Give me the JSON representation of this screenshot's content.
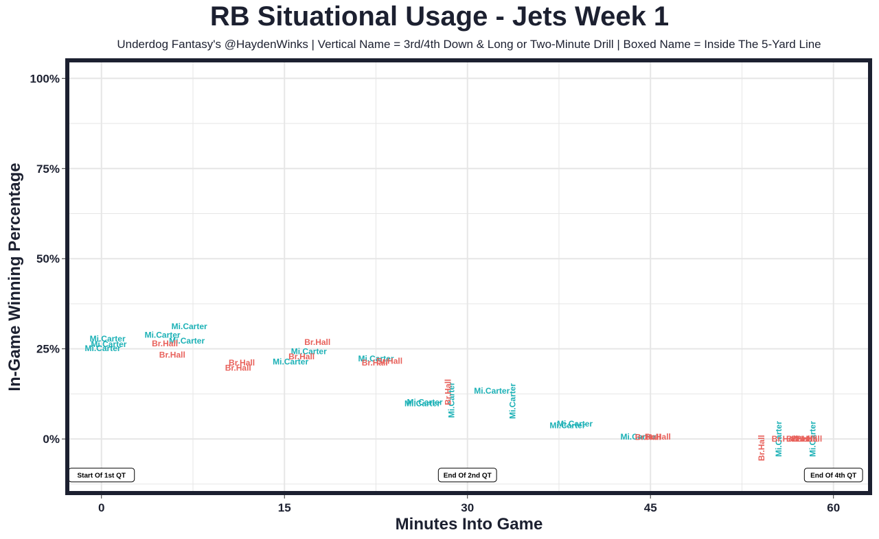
{
  "colors": {
    "Br.Hall": "#e8615b",
    "Mi.Carter": "#1cb1b6",
    "frame": "#1c2030",
    "grid": "#e6e6e6"
  },
  "chart_data": {
    "type": "scatter",
    "title": "RB Situational Usage - Jets Week 1",
    "subtitle": "Underdog Fantasy's @HaydenWinks | Vertical Name = 3rd/4th Down & Long or Two-Minute Drill | Boxed Name = Inside The 5-Yard Line",
    "xlabel": "Minutes Into Game",
    "ylabel": "In-Game Winning Percentage",
    "xlim": [
      -2.8,
      63
    ],
    "ylim": [
      -15,
      105
    ],
    "xticks": [
      0,
      15,
      30,
      45,
      60
    ],
    "xtick_labels": [
      "0",
      "15",
      "30",
      "45",
      "60"
    ],
    "yticks": [
      0,
      25,
      50,
      75,
      100
    ],
    "ytick_labels": [
      "0%",
      "25%",
      "50%",
      "75%",
      "100%"
    ],
    "grid": true,
    "series": [
      {
        "name": "Mi.Carter",
        "points": [
          {
            "x": 0.5,
            "y": 27.8
          },
          {
            "x": 0.6,
            "y": 26.3
          },
          {
            "x": 0.1,
            "y": 25.1
          },
          {
            "x": 5,
            "y": 28.8
          },
          {
            "x": 7.2,
            "y": 31.2
          },
          {
            "x": 7,
            "y": 27.2
          },
          {
            "x": 17,
            "y": 24.3
          },
          {
            "x": 15.5,
            "y": 21.4
          },
          {
            "x": 22.5,
            "y": 22.3
          },
          {
            "x": 26.5,
            "y": 10.2
          },
          {
            "x": 26.3,
            "y": 9.8
          },
          {
            "x": 28.7,
            "y": 10.8,
            "vertical": true
          },
          {
            "x": 33.7,
            "y": 10.5,
            "vertical": true
          },
          {
            "x": 32,
            "y": 13.3
          },
          {
            "x": 38.8,
            "y": 4.2
          },
          {
            "x": 38.2,
            "y": 3.7
          },
          {
            "x": 44,
            "y": 0.6
          },
          {
            "x": 55.5,
            "y": 0,
            "vertical": true
          },
          {
            "x": 58.3,
            "y": 0,
            "vertical": true
          }
        ]
      },
      {
        "name": "Br.Hall",
        "points": [
          {
            "x": 5.2,
            "y": 26.5
          },
          {
            "x": 5.8,
            "y": 23.3
          },
          {
            "x": 17.7,
            "y": 26.8
          },
          {
            "x": 16.4,
            "y": 22.8
          },
          {
            "x": 11.5,
            "y": 21.1
          },
          {
            "x": 11.2,
            "y": 19.7
          },
          {
            "x": 22.4,
            "y": 21.1
          },
          {
            "x": 23.6,
            "y": 21.6
          },
          {
            "x": 28.4,
            "y": 13,
            "vertical": true
          },
          {
            "x": 45.6,
            "y": 0.6
          },
          {
            "x": 44.8,
            "y": 0.5
          },
          {
            "x": 54.1,
            "y": -2.5,
            "vertical": true
          },
          {
            "x": 56,
            "y": 0
          },
          {
            "x": 57.2,
            "y": 0
          },
          {
            "x": 57.6,
            "y": 0
          },
          {
            "x": 58,
            "y": 0
          }
        ]
      }
    ],
    "annotations": [
      {
        "text": "Start Of 1st QT",
        "x": 0,
        "y": -10
      },
      {
        "text": "End Of 2nd QT",
        "x": 30,
        "y": -10
      },
      {
        "text": "End Of 4th QT",
        "x": 60,
        "y": -10
      }
    ]
  }
}
